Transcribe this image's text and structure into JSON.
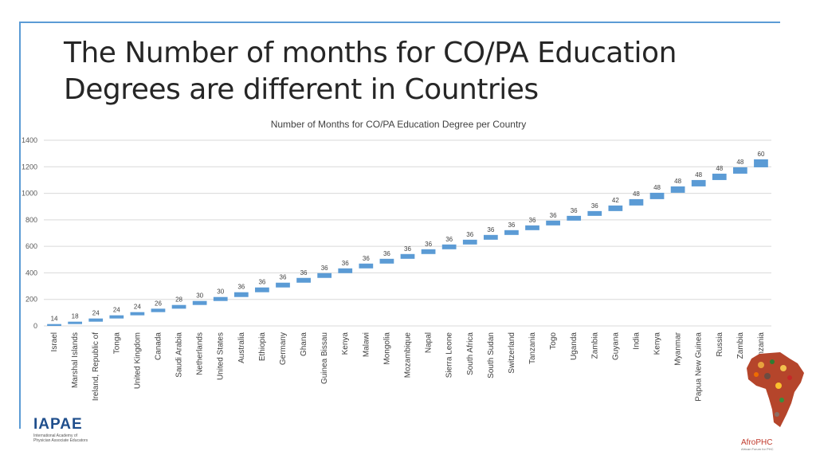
{
  "slide": {
    "title_line1": "The Number of months for CO/PA Education",
    "title_line2": "Degrees are different in Countries"
  },
  "chart_data": {
    "type": "bar",
    "subtype": "waterfall",
    "title": "Number of Months for CO/PA Education Degree per Country",
    "categories": [
      "Israel",
      "Marshal Islands",
      "Ireland, Republic of",
      "Tonga",
      "United Kingdom",
      "Canada",
      "Saudi Arabia",
      "Netherlands",
      "United States",
      "Australia",
      "Ethiopia",
      "Germany",
      "Ghana",
      "Guinea Bissau",
      "Kenya",
      "Malawi",
      "Mongolia",
      "Mozambique",
      "Napal",
      "Sierra Leone",
      "South Africa",
      "South Sudan",
      "Switzerland",
      "Tanzania",
      "Togo",
      "Uganda",
      "Zambia",
      "Guyana",
      "India",
      "Kenya",
      "Myanmar",
      "Papua New Guinea",
      "Russia",
      "Zambia",
      "Tanzania"
    ],
    "values": [
      14,
      18,
      24,
      24,
      24,
      26,
      28,
      30,
      30,
      36,
      36,
      36,
      36,
      36,
      36,
      36,
      36,
      36,
      36,
      36,
      36,
      36,
      36,
      36,
      36,
      36,
      36,
      42,
      48,
      48,
      48,
      48,
      48,
      48,
      60
    ],
    "ylim": [
      0,
      1400
    ],
    "yticks": [
      0,
      200,
      400,
      600,
      800,
      1000,
      1200,
      1400
    ],
    "grid": true,
    "bar_color": "#5b9bd5"
  },
  "logos": {
    "left_text": "IAPAE",
    "left_sub1": "International Academy of",
    "left_sub2": "Physician Associate Educators",
    "right_text": "AfroPHC",
    "right_sub": "African Forum for PHC"
  }
}
